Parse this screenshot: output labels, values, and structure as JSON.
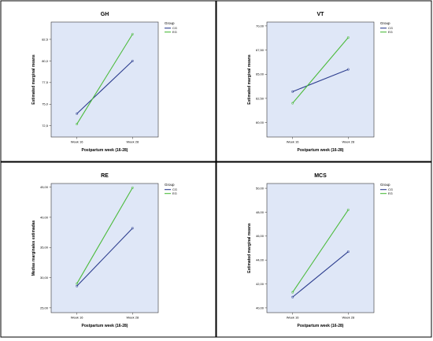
{
  "chart_data": [
    {
      "type": "line",
      "title": "GH",
      "xlabel": "Postpartum week (16-28)",
      "ylabel": "Estimated marginal means",
      "categories": [
        "Week 16",
        "Week 28"
      ],
      "ylim": [
        71.2,
        84.5
      ],
      "yticks": [
        "72,5",
        "75,0",
        "77,5",
        "80,0",
        "82,5"
      ],
      "ytick_values": [
        72.5,
        75.0,
        77.5,
        80.0,
        82.5
      ],
      "legend_title": "Group",
      "series": [
        {
          "name": "CG",
          "color": "#2e3f8f",
          "values": [
            73.9,
            80.0
          ]
        },
        {
          "name": "EG",
          "color": "#4cbb3c",
          "values": [
            72.7,
            83.1
          ]
        }
      ]
    },
    {
      "type": "line",
      "title": "VT",
      "xlabel": "Postpartum week (16-28)",
      "ylabel": "Estimated marginal means",
      "categories": [
        "Week 16",
        "Week 28"
      ],
      "ylim": [
        58.5,
        70.4
      ],
      "yticks": [
        "60,00",
        "62,50",
        "65,00",
        "67,50",
        "70,00"
      ],
      "ytick_values": [
        60.0,
        62.5,
        65.0,
        67.5,
        70.0
      ],
      "legend_title": "Group",
      "series": [
        {
          "name": "CG",
          "color": "#2e3f8f",
          "values": [
            63.2,
            65.5
          ]
        },
        {
          "name": "EG",
          "color": "#4cbb3c",
          "values": [
            62.0,
            68.8
          ]
        }
      ]
    },
    {
      "type": "line",
      "title": "RE",
      "xlabel": "Postpartum week (16-28)",
      "ylabel": "Medias marginales estimadas",
      "categories": [
        "Week 16",
        "Week 28"
      ],
      "ylim": [
        24.2,
        45.6
      ],
      "yticks": [
        "25,00",
        "30,00",
        "35,00",
        "40,00",
        "45,00"
      ],
      "ytick_values": [
        25.0,
        30.0,
        35.0,
        40.0,
        45.0
      ],
      "legend_title": "Group",
      "series": [
        {
          "name": "CG",
          "color": "#2e3f8f",
          "values": [
            28.6,
            38.2
          ]
        },
        {
          "name": "EG",
          "color": "#4cbb3c",
          "values": [
            29.0,
            44.9
          ]
        }
      ]
    },
    {
      "type": "line",
      "title": "MCS",
      "xlabel": "Postpartum week (16-28)",
      "ylabel": "Estimated marginal means",
      "categories": [
        "Week 16",
        "Week 28"
      ],
      "ylim": [
        39.6,
        50.4
      ],
      "yticks": [
        "40,00",
        "42,00",
        "44,00",
        "46,00",
        "48,00",
        "50,00"
      ],
      "ytick_values": [
        40.0,
        42.0,
        44.0,
        46.0,
        48.0,
        50.0
      ],
      "legend_title": "Group",
      "series": [
        {
          "name": "CG",
          "color": "#2e3f8f",
          "values": [
            40.9,
            44.7
          ]
        },
        {
          "name": "EG",
          "color": "#4cbb3c",
          "values": [
            41.3,
            48.2
          ]
        }
      ]
    }
  ]
}
